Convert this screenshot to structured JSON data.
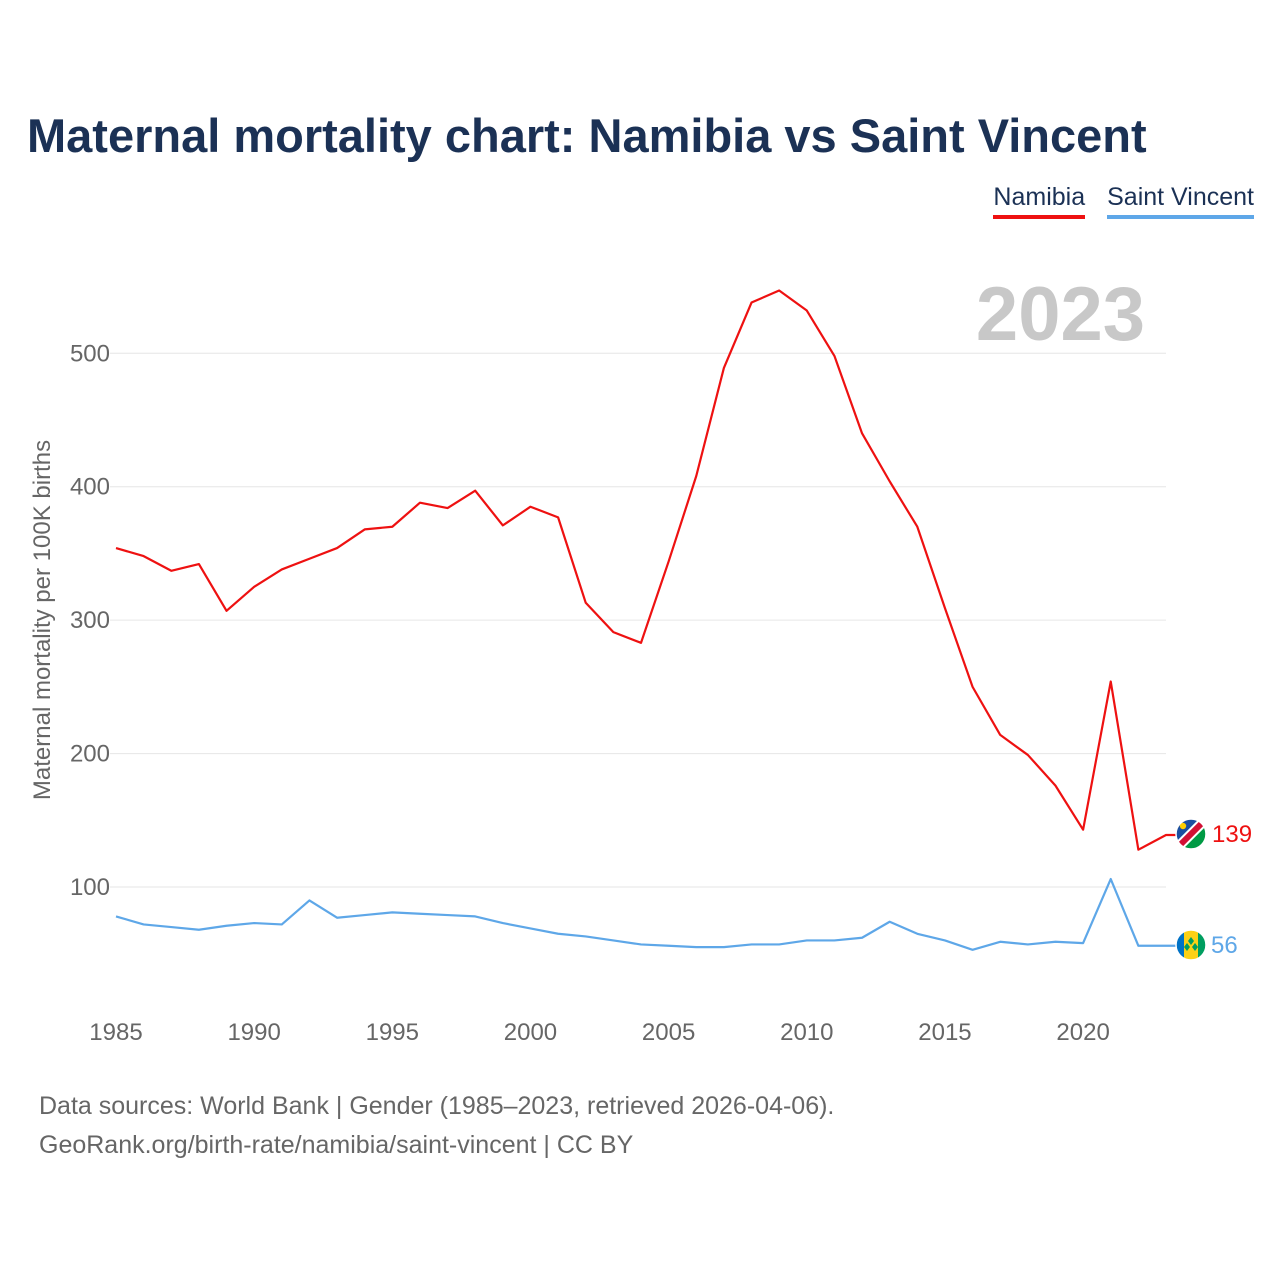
{
  "title": "Maternal mortality chart: Namibia vs Saint Vincent",
  "legend": [
    {
      "label": "Namibia",
      "color": "#ee1111"
    },
    {
      "label": "Saint Vincent",
      "color": "#5ea7e8"
    }
  ],
  "year_watermark": "2023",
  "footer": {
    "line1": "Data sources: World Bank | Gender (1985–2023, retrieved 2026-04-06).",
    "line2": "GeoRank.org/birth-rate/namibia/saint-vincent | CC BY"
  },
  "chart_data": {
    "type": "line",
    "title": "Maternal mortality chart: Namibia vs Saint Vincent",
    "xlabel": "",
    "ylabel": "Maternal mortality per 100K births",
    "xlim": [
      1985,
      2023
    ],
    "ylim": [
      0,
      560
    ],
    "x_ticks": [
      1985,
      1990,
      1995,
      2000,
      2005,
      2010,
      2015,
      2020
    ],
    "y_ticks": [
      100,
      200,
      300,
      400,
      500
    ],
    "grid": true,
    "x": [
      1985,
      1986,
      1987,
      1988,
      1989,
      1990,
      1991,
      1992,
      1993,
      1994,
      1995,
      1996,
      1997,
      1998,
      1999,
      2000,
      2001,
      2002,
      2003,
      2004,
      2005,
      2006,
      2007,
      2008,
      2009,
      2010,
      2011,
      2012,
      2013,
      2014,
      2015,
      2016,
      2017,
      2018,
      2019,
      2020,
      2021,
      2022,
      2023
    ],
    "series": [
      {
        "name": "Namibia",
        "color": "#ee1111",
        "end_label": "139",
        "values": [
          354,
          348,
          337,
          342,
          307,
          325,
          338,
          346,
          354,
          368,
          370,
          388,
          384,
          397,
          371,
          385,
          377,
          313,
          291,
          283,
          344,
          408,
          489,
          538,
          547,
          532,
          498,
          440,
          404,
          370,
          309,
          250,
          214,
          199,
          176,
          143,
          254,
          128,
          139
        ]
      },
      {
        "name": "Saint Vincent",
        "color": "#5ea7e8",
        "end_label": "56",
        "values": [
          78,
          72,
          70,
          68,
          71,
          73,
          72,
          90,
          77,
          79,
          81,
          80,
          79,
          78,
          73,
          69,
          65,
          63,
          60,
          57,
          56,
          55,
          55,
          57,
          57,
          60,
          60,
          62,
          74,
          65,
          60,
          53,
          59,
          57,
          59,
          58,
          106,
          56,
          56
        ]
      }
    ]
  }
}
